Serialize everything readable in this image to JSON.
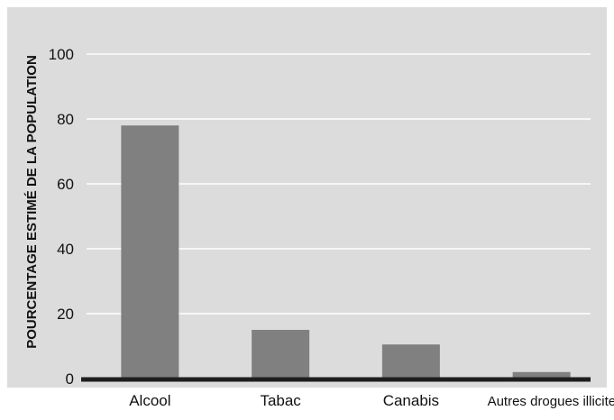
{
  "chart_data": {
    "type": "bar",
    "title": "",
    "xlabel": "",
    "ylabel": "POURCENTAGE ESTIMÉ DE LA POPULATION",
    "categories": [
      "Alcool",
      "Tabac",
      "Canabis",
      "Autres drogues illicites"
    ],
    "values": [
      78,
      15,
      10.5,
      2
    ],
    "ylim": [
      0,
      100
    ],
    "yticks": [
      "0",
      "20",
      "40",
      "60",
      "80",
      "100"
    ],
    "grid": true,
    "legend": "none"
  },
  "colors": {
    "background": "#dcdcdc",
    "bar": "#808080",
    "gridline": "#ffffff",
    "axis": "#1e1e1e",
    "text": "#111111"
  }
}
